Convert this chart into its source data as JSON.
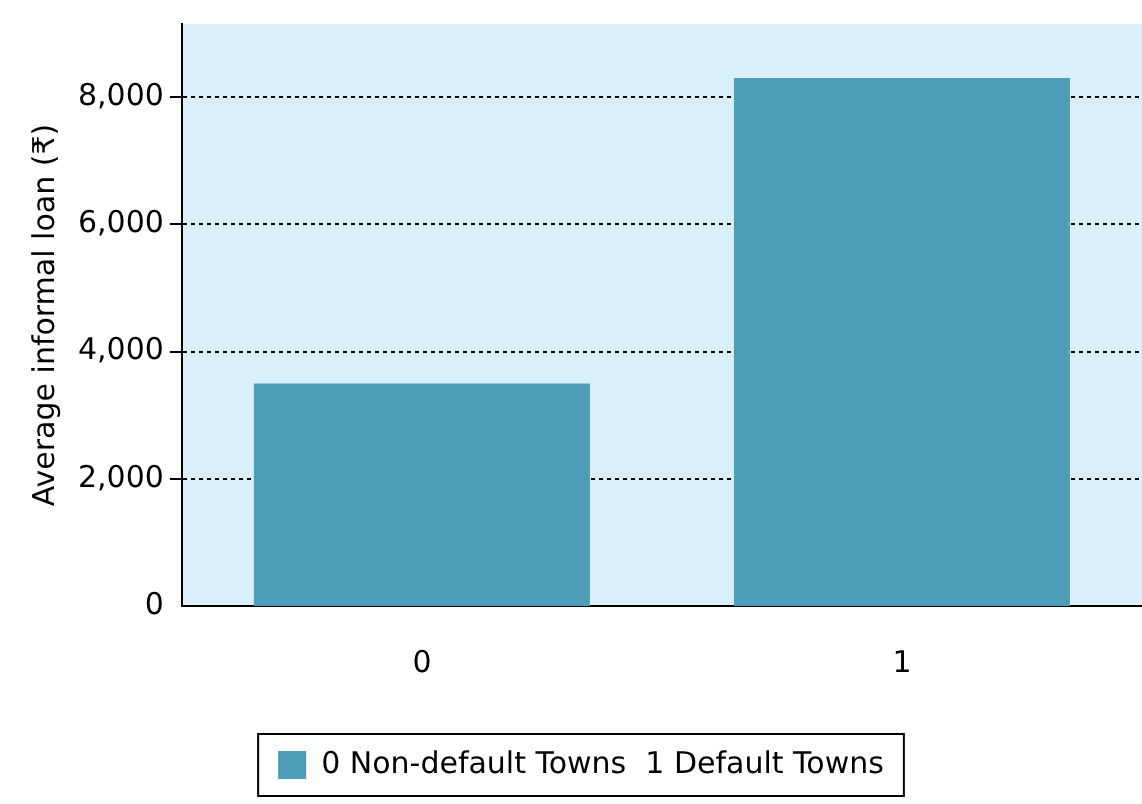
{
  "chart_data": {
    "type": "bar",
    "ylabel": "Average informal loan (₹)",
    "categories": [
      "0",
      "1"
    ],
    "series": [
      {
        "name": "0 Non-default Towns  1 Default Towns",
        "color": "#4e9db8",
        "values": [
          3500,
          8300
        ]
      }
    ],
    "ylim": [
      0,
      9150
    ],
    "yticks": [
      0,
      {
        "value": 2000,
        "label": "2,000"
      },
      {
        "value": 4000,
        "label": "4,000"
      },
      {
        "value": 6000,
        "label": "6,000"
      },
      {
        "value": 8000,
        "label": "8,000"
      }
    ],
    "grid": "y",
    "legend": "bottom"
  }
}
